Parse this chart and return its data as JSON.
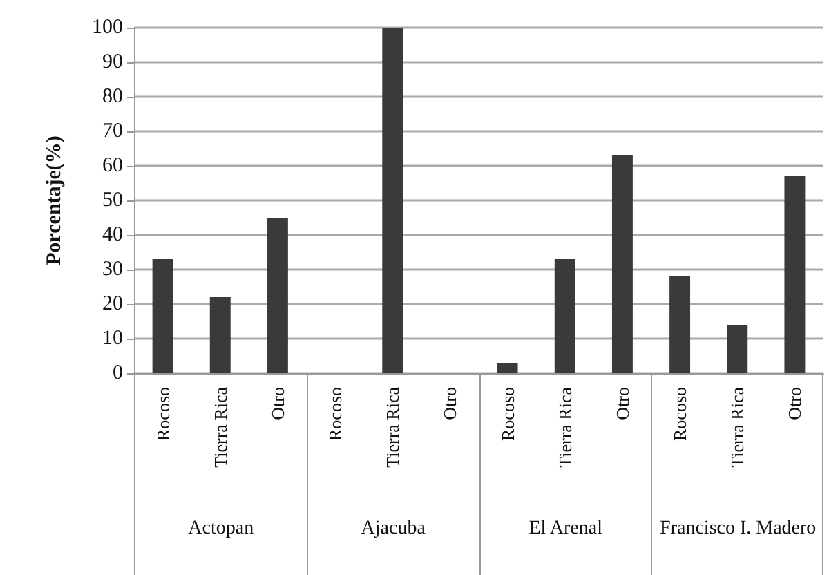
{
  "chart_data": {
    "type": "bar",
    "ylabel": "Porcentaje(%)",
    "categories": [
      "Rocoso",
      "Tierra Rica",
      "Otro",
      "Rocoso",
      "Tierra Rica",
      "Otro",
      "Rocoso",
      "Tierra Rica",
      "Otro",
      "Rocoso",
      "Tierra Rica",
      "Otro"
    ],
    "values": [
      33,
      22,
      45,
      0,
      100,
      0,
      3,
      33,
      63,
      28,
      14,
      57
    ],
    "color": "#3a3a3a",
    "annotations": [
      "Actopan",
      "Ajacuba",
      "El Arenal",
      "Francisco I. Madero"
    ],
    "ylim": [
      0,
      100
    ],
    "yticks": [
      0,
      10,
      20,
      30,
      40,
      50,
      60,
      70,
      80,
      90,
      100
    ],
    "grid": "y"
  }
}
